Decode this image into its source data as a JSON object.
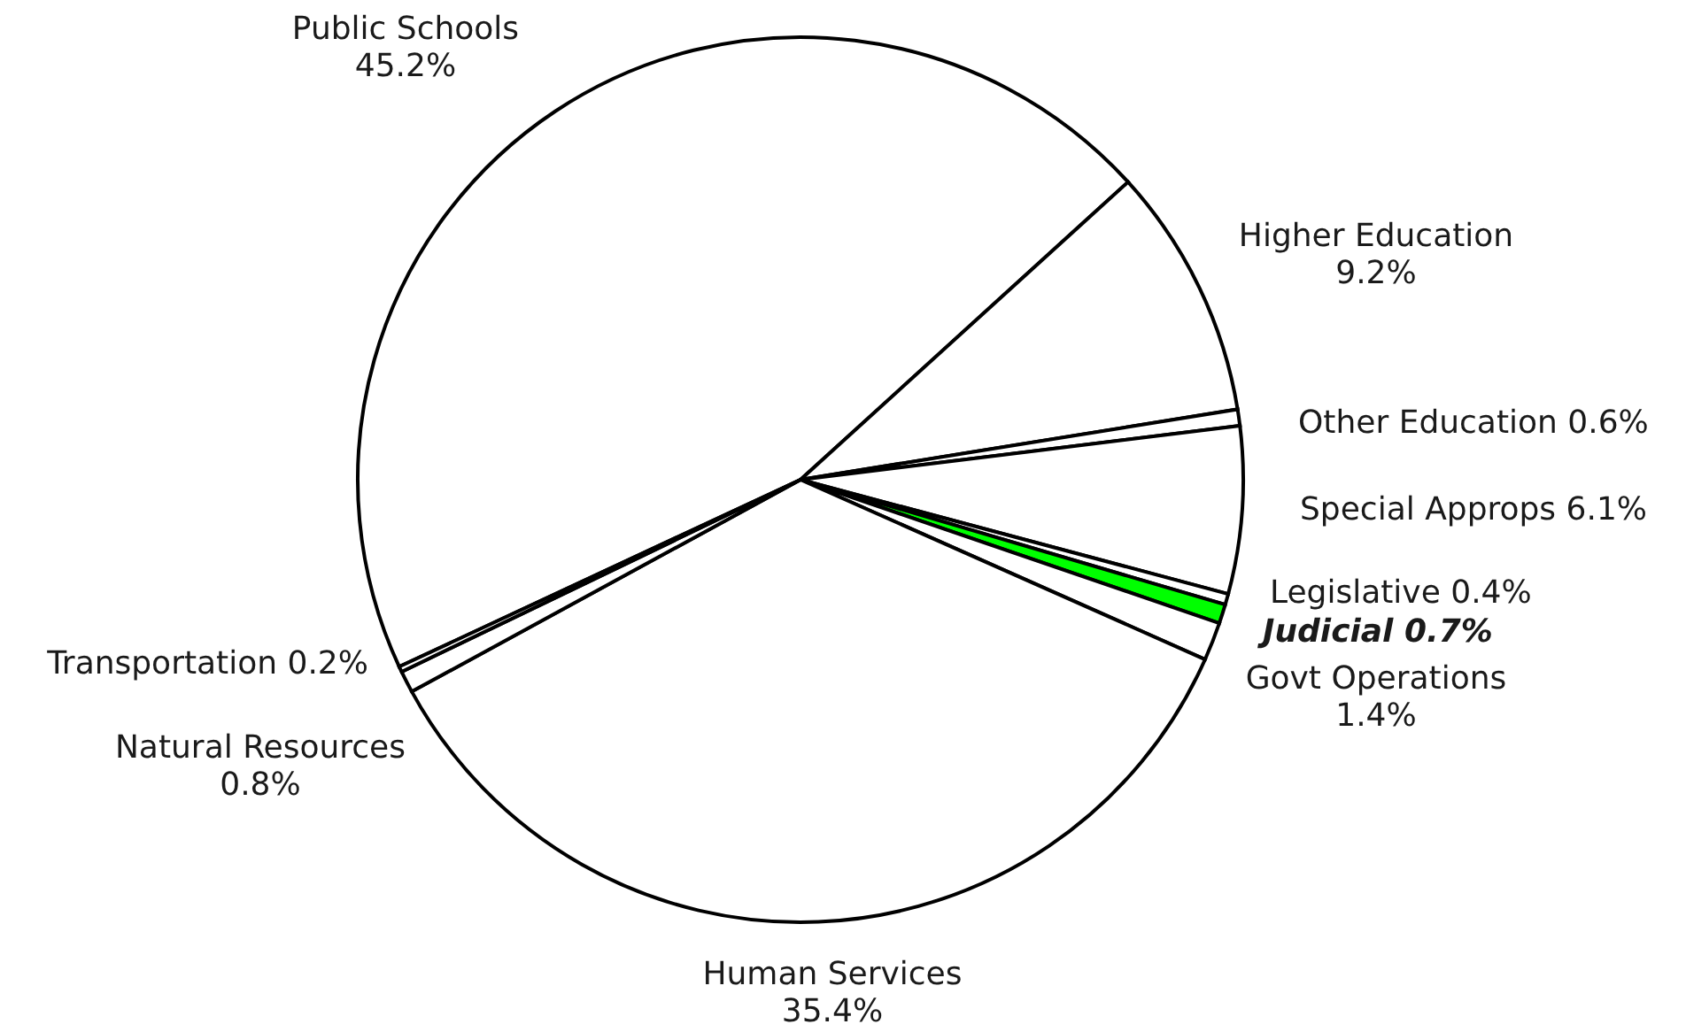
{
  "chart_data": {
    "type": "pie",
    "categories": [
      "Public Schools",
      "Higher Education",
      "Other Education",
      "Special Approps",
      "Legislative",
      "Judicial",
      "Govt Operations",
      "Human Services",
      "Natural Resources",
      "Transportation"
    ],
    "values": [
      45.2,
      9.2,
      0.6,
      6.1,
      0.4,
      0.7,
      1.4,
      35.4,
      0.8,
      0.2
    ],
    "value_labels": [
      "45.2%",
      "9.2%",
      "0.6%",
      "6.1%",
      "0.4%",
      "0.7%",
      "1.4%",
      "35.4%",
      "0.8%",
      "0.2%"
    ],
    "colors": [
      "#ffffff",
      "#ffffff",
      "#ffffff",
      "#ffffff",
      "#ffffff",
      "#00ff00",
      "#ffffff",
      "#ffffff",
      "#ffffff",
      "#ffffff"
    ]
  }
}
